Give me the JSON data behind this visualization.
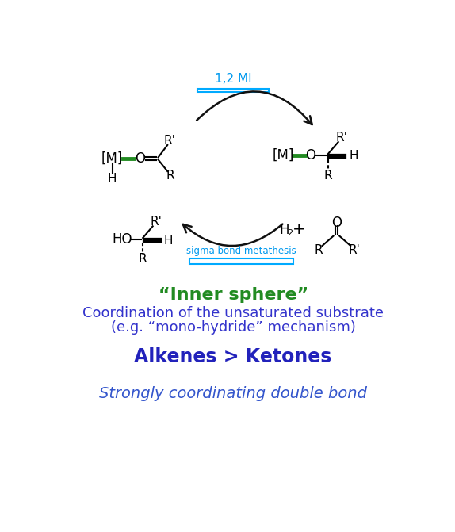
{
  "bg_color": "#ffffff",
  "title_inner_sphere": "“Inner sphere”",
  "title_color": "#228B22",
  "line1": "Coordination of the unsaturated substrate",
  "line2": "(e.g. “mono-hydride” mechanism)",
  "body_color": "#3333cc",
  "alkenes_line": "Alkenes > Ketones",
  "alkenes_color": "#2222bb",
  "last_line": "Strongly coordinating double bond",
  "last_color": "#3355cc",
  "box1_label": "1,2 MI",
  "box2_label": "sigma bond metathesis",
  "box_edge_color": "#00aaff",
  "box_text_color": "#0099ee",
  "green_bond": "#228B22",
  "black": "#000000",
  "arrow_color": "#111111",
  "mol_fs": 12,
  "sub_fs": 11,
  "fig_w": 5.74,
  "fig_h": 6.71,
  "dpi": 100
}
